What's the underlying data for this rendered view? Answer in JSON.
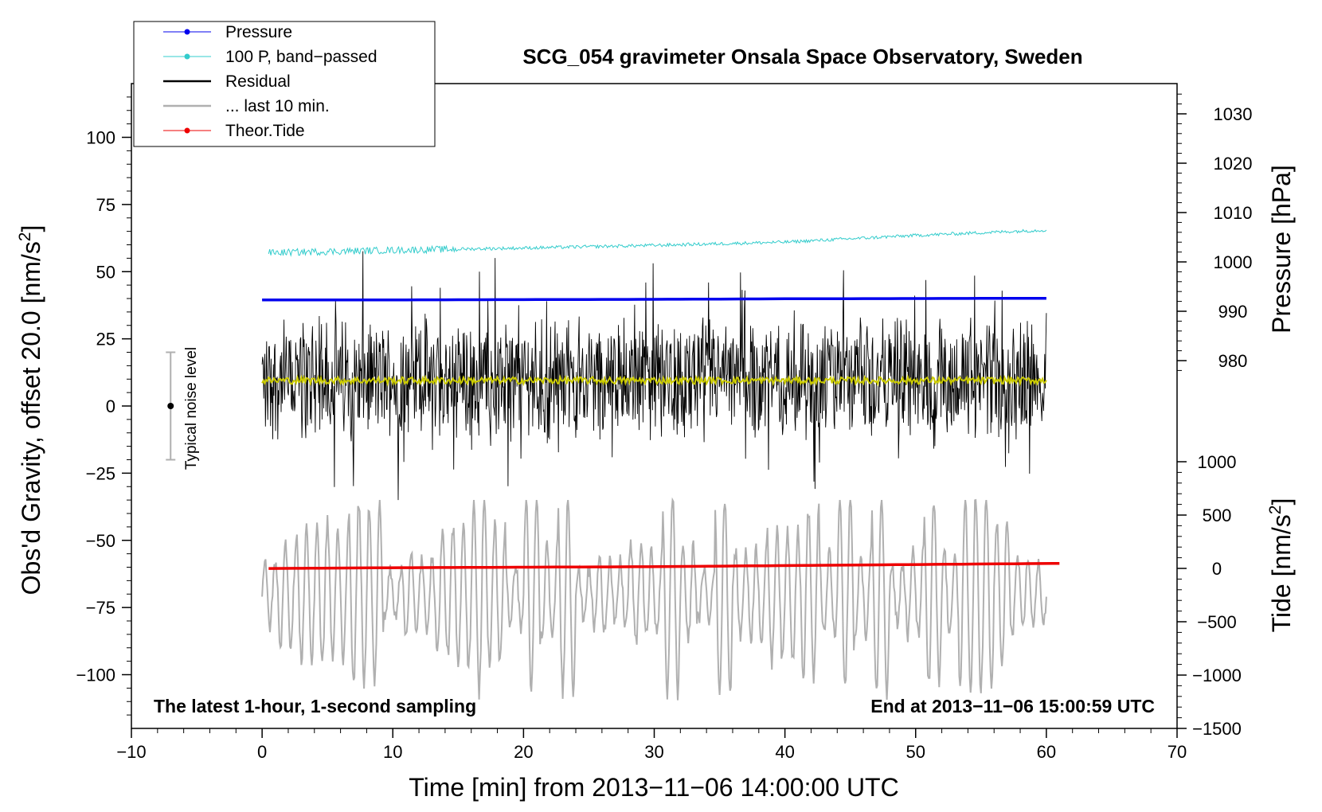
{
  "chart_data": {
    "type": "line",
    "title": "SCG_054 gravimeter Onsala Space Observatory, Sweden",
    "xlabel": "Time [min] from 2013−11−06 14:00:00 UTC",
    "ylabel_left_main": "Obs'd Gravity, offset 20.0 [nm/s",
    "ylabel_left_sup": "2",
    "ylabel_left_close": "]",
    "ylabel_right_pressure": "Pressure [hPa]",
    "ylabel_right_tide_main": "Tide [nm/s",
    "ylabel_right_tide_sup": "2",
    "ylabel_right_tide_close": "]",
    "xlim": [
      -10,
      70
    ],
    "ylim_left": [
      -120,
      120
    ],
    "x_ticks": [
      "−10",
      "0",
      "10",
      "20",
      "30",
      "40",
      "50",
      "60",
      "70"
    ],
    "y_left_ticks": [
      "100",
      "75",
      "50",
      "25",
      "0",
      "−25",
      "−50",
      "−75",
      "−100"
    ],
    "pressure_axis": {
      "range_hPa": [
        960,
        1036
      ],
      "ticks": [
        "1030",
        "1020",
        "1010",
        "1000",
        "990",
        "980"
      ]
    },
    "tide_axis": {
      "range_nm_s2": [
        -1500,
        1000
      ],
      "ticks": [
        "1000",
        "500",
        "0",
        "−500",
        "−1000",
        "−1500"
      ]
    },
    "annotations": {
      "bottom_left": "The latest 1-hour, 1-second sampling",
      "bottom_right": "End at 2013−11−06 15:00:59 UTC",
      "noise_label": "Typical noise level"
    },
    "noise_bar": {
      "x": -7,
      "center": 0,
      "low": -20,
      "high": 20
    },
    "legend": [
      {
        "label": "Pressure",
        "color": "#0000ee",
        "marker": true
      },
      {
        "label": "100 P, band−passed",
        "color": "#33cccc",
        "marker": true
      },
      {
        "label": "Residual",
        "color": "#000000",
        "marker": false
      },
      {
        "label": "... last 10 min.",
        "color": "#b0b0b0",
        "marker": false
      },
      {
        "label": "Theor.Tide",
        "color": "#ee0000",
        "marker": true
      }
    ],
    "series": [
      {
        "name": "Pressure",
        "color": "#0000ee",
        "axis": "left",
        "x": [
          0,
          10,
          20,
          30,
          40,
          50,
          60
        ],
        "values": [
          39.5,
          39.5,
          39.6,
          39.7,
          39.9,
          40.0,
          40.1
        ]
      },
      {
        "name": "100 P, band-passed",
        "color": "#33cccc",
        "axis": "left",
        "x": [
          0,
          10,
          20,
          30,
          40,
          50,
          60
        ],
        "values": [
          57.0,
          58.0,
          58.8,
          59.8,
          61.0,
          63.5,
          65.5
        ]
      },
      {
        "name": "Residual",
        "color": "#000000",
        "axis": "left",
        "x": [
          0,
          60
        ],
        "values": [
          10,
          10
        ],
        "spread_approx": [
          -30,
          55
        ]
      },
      {
        "name": "Residual smoothed",
        "color": "#cccc00",
        "axis": "left",
        "x": [
          0,
          60
        ],
        "values": [
          9.5,
          9.5
        ]
      },
      {
        "name": "... last 10 min.",
        "color": "#b0b0b0",
        "axis": "left",
        "x": [
          0,
          60
        ],
        "values": [
          -70,
          -70
        ],
        "spread_approx": [
          -108,
          -35
        ]
      },
      {
        "name": "Theor.Tide",
        "color": "#ee0000",
        "axis": "left",
        "x": [
          0,
          10,
          20,
          30,
          40,
          50,
          60.5
        ],
        "values": [
          -60.5,
          -60.2,
          -60.0,
          -59.8,
          -59.4,
          -59.0,
          -58.6
        ]
      }
    ]
  },
  "colors": {
    "yellow_smoothed": "#cccc00"
  }
}
